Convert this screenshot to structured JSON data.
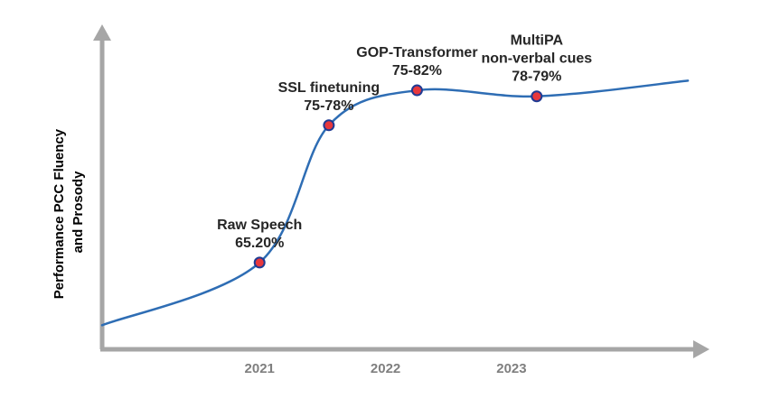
{
  "chart_data": {
    "type": "line",
    "title": "",
    "xlabel": "",
    "ylabel": "Performance PCC Fluency and Prosody",
    "ylabel_lines": [
      "Performance PCC Fluency",
      "and Prosody"
    ],
    "x_ticks": [
      "2021",
      "2022",
      "2023"
    ],
    "x_tick_values": [
      2021,
      2022,
      2023
    ],
    "xlim": [
      2019.75,
      2024.5
    ],
    "ylim": [
      58,
      84
    ],
    "grid": false,
    "series": [
      {
        "name": "Performance trend",
        "color": "#2e6db4",
        "curve": [
          {
            "x": 2019.75,
            "y": 60.0
          },
          {
            "x": 2021.0,
            "y": 65.2
          },
          {
            "x": 2021.55,
            "y": 76.6
          },
          {
            "x": 2022.25,
            "y": 79.5
          },
          {
            "x": 2023.2,
            "y": 79.0
          },
          {
            "x": 2024.4,
            "y": 80.3
          }
        ]
      }
    ],
    "points": [
      {
        "x": 2021.0,
        "y": 65.2,
        "label_lines": [
          "Raw Speech",
          "65.20%"
        ]
      },
      {
        "x": 2021.55,
        "y": 76.6,
        "label_lines": [
          "SSL finetuning",
          "75-78%"
        ]
      },
      {
        "x": 2022.25,
        "y": 79.5,
        "label_lines": [
          "GOP-Transformer",
          "75-82%"
        ]
      },
      {
        "x": 2023.2,
        "y": 79.0,
        "label_lines": [
          "MultiPA",
          "non-verbal cues",
          "78-79%"
        ]
      }
    ],
    "axis_color": "#a6a6a6",
    "marker_fill": "#e8383d",
    "marker_edge": "#1f3a93"
  }
}
